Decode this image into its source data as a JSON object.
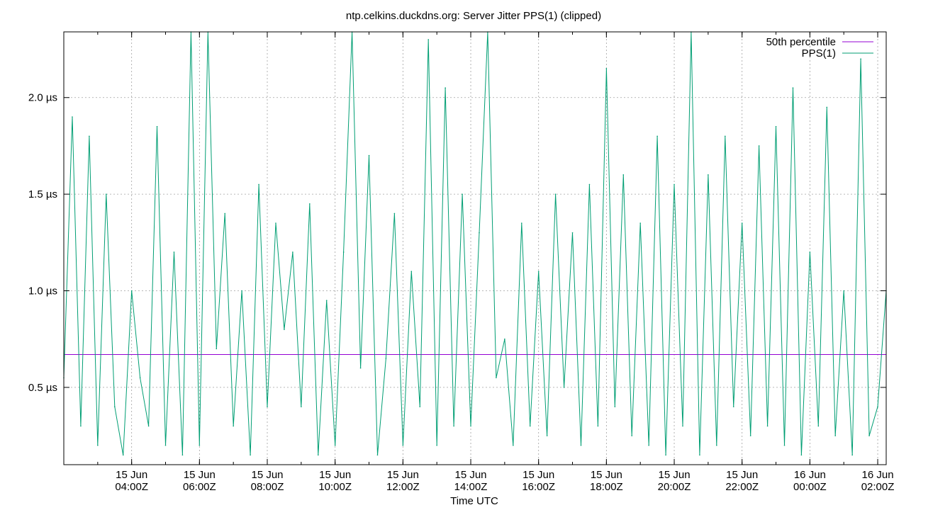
{
  "chart_data": {
    "type": "line",
    "title": "ntp.celkins.duckdns.org: Server Jitter PPS(1) (clipped)",
    "xlabel": "Time UTC",
    "ylabel": "",
    "x_range": [
      "2025-06-15T02:00Z",
      "2025-06-16T02:15Z"
    ],
    "x_ticks": [
      {
        "time": "2025-06-15T04:00Z",
        "label_top": "15 Jun",
        "label_bottom": "04:00Z"
      },
      {
        "time": "2025-06-15T06:00Z",
        "label_top": "15 Jun",
        "label_bottom": "06:00Z"
      },
      {
        "time": "2025-06-15T08:00Z",
        "label_top": "15 Jun",
        "label_bottom": "08:00Z"
      },
      {
        "time": "2025-06-15T10:00Z",
        "label_top": "15 Jun",
        "label_bottom": "10:00Z"
      },
      {
        "time": "2025-06-15T12:00Z",
        "label_top": "15 Jun",
        "label_bottom": "12:00Z"
      },
      {
        "time": "2025-06-15T14:00Z",
        "label_top": "15 Jun",
        "label_bottom": "14:00Z"
      },
      {
        "time": "2025-06-15T16:00Z",
        "label_top": "15 Jun",
        "label_bottom": "16:00Z"
      },
      {
        "time": "2025-06-15T18:00Z",
        "label_top": "15 Jun",
        "label_bottom": "18:00Z"
      },
      {
        "time": "2025-06-15T20:00Z",
        "label_top": "15 Jun",
        "label_bottom": "20:00Z"
      },
      {
        "time": "2025-06-15T22:00Z",
        "label_top": "15 Jun",
        "label_bottom": "22:00Z"
      },
      {
        "time": "2025-06-16T00:00Z",
        "label_top": "16 Jun",
        "label_bottom": "00:00Z"
      },
      {
        "time": "2025-06-16T02:00Z",
        "label_top": "16 Jun",
        "label_bottom": "02:00Z"
      }
    ],
    "ylim": [
      0.1,
      2.34
    ],
    "y_ticks": [
      {
        "value": 0.5,
        "label": "0.5 µs"
      },
      {
        "value": 1.0,
        "label": "1.0 µs"
      },
      {
        "value": 1.5,
        "label": "1.5 µs"
      },
      {
        "value": 2.0,
        "label": "2.0 µs"
      }
    ],
    "grid": true,
    "legend_position": "top-right",
    "series": [
      {
        "name": "50th percentile",
        "color": "#9400d3",
        "kind": "constant",
        "value": 0.67
      },
      {
        "name": "PPS(1)",
        "color": "#009e73",
        "kind": "line",
        "x": [
          "2025-06-15T02:00Z",
          "2025-06-15T02:15Z",
          "2025-06-15T02:30Z",
          "2025-06-15T02:45Z",
          "2025-06-15T03:00Z",
          "2025-06-15T03:15Z",
          "2025-06-15T03:30Z",
          "2025-06-15T03:45Z",
          "2025-06-15T04:00Z",
          "2025-06-15T04:15Z",
          "2025-06-15T04:30Z",
          "2025-06-15T04:45Z",
          "2025-06-15T05:00Z",
          "2025-06-15T05:15Z",
          "2025-06-15T05:30Z",
          "2025-06-15T05:45Z",
          "2025-06-15T06:00Z",
          "2025-06-15T06:15Z",
          "2025-06-15T06:30Z",
          "2025-06-15T06:45Z",
          "2025-06-15T07:00Z",
          "2025-06-15T07:15Z",
          "2025-06-15T07:30Z",
          "2025-06-15T07:45Z",
          "2025-06-15T08:00Z",
          "2025-06-15T08:15Z",
          "2025-06-15T08:30Z",
          "2025-06-15T08:45Z",
          "2025-06-15T09:00Z",
          "2025-06-15T09:15Z",
          "2025-06-15T09:30Z",
          "2025-06-15T09:45Z",
          "2025-06-15T10:00Z",
          "2025-06-15T10:15Z",
          "2025-06-15T10:30Z",
          "2025-06-15T10:45Z",
          "2025-06-15T11:00Z",
          "2025-06-15T11:15Z",
          "2025-06-15T11:30Z",
          "2025-06-15T11:45Z",
          "2025-06-15T12:00Z",
          "2025-06-15T12:15Z",
          "2025-06-15T12:30Z",
          "2025-06-15T12:45Z",
          "2025-06-15T13:00Z",
          "2025-06-15T13:15Z",
          "2025-06-15T13:30Z",
          "2025-06-15T13:45Z",
          "2025-06-15T14:00Z",
          "2025-06-15T14:15Z",
          "2025-06-15T14:30Z",
          "2025-06-15T14:45Z",
          "2025-06-15T15:00Z",
          "2025-06-15T15:15Z",
          "2025-06-15T15:30Z",
          "2025-06-15T15:45Z",
          "2025-06-15T16:00Z",
          "2025-06-15T16:15Z",
          "2025-06-15T16:30Z",
          "2025-06-15T16:45Z",
          "2025-06-15T17:00Z",
          "2025-06-15T17:15Z",
          "2025-06-15T17:30Z",
          "2025-06-15T17:45Z",
          "2025-06-15T18:00Z",
          "2025-06-15T18:15Z",
          "2025-06-15T18:30Z",
          "2025-06-15T18:45Z",
          "2025-06-15T19:00Z",
          "2025-06-15T19:15Z",
          "2025-06-15T19:30Z",
          "2025-06-15T19:45Z",
          "2025-06-15T20:00Z",
          "2025-06-15T20:15Z",
          "2025-06-15T20:30Z",
          "2025-06-15T20:45Z",
          "2025-06-15T21:00Z",
          "2025-06-15T21:15Z",
          "2025-06-15T21:30Z",
          "2025-06-15T21:45Z",
          "2025-06-15T22:00Z",
          "2025-06-15T22:15Z",
          "2025-06-15T22:30Z",
          "2025-06-15T22:45Z",
          "2025-06-15T23:00Z",
          "2025-06-15T23:15Z",
          "2025-06-15T23:30Z",
          "2025-06-15T23:45Z",
          "2025-06-16T00:00Z",
          "2025-06-16T00:15Z",
          "2025-06-16T00:30Z",
          "2025-06-16T00:45Z",
          "2025-06-16T01:00Z",
          "2025-06-16T01:15Z",
          "2025-06-16T01:30Z",
          "2025-06-16T01:45Z",
          "2025-06-16T02:00Z",
          "2025-06-16T02:15Z"
        ],
        "y": [
          0.55,
          1.9,
          0.3,
          1.8,
          0.2,
          1.5,
          0.4,
          0.15,
          1.0,
          0.55,
          0.3,
          1.85,
          0.2,
          1.2,
          0.15,
          2.34,
          0.2,
          2.34,
          0.7,
          1.4,
          0.3,
          1.0,
          0.15,
          1.55,
          0.4,
          1.35,
          0.8,
          1.2,
          0.4,
          1.45,
          0.15,
          0.95,
          0.2,
          1.2,
          2.34,
          0.6,
          1.7,
          0.15,
          0.65,
          1.4,
          0.2,
          1.1,
          0.4,
          2.3,
          0.2,
          2.05,
          0.3,
          1.5,
          0.3,
          1.3,
          2.34,
          0.55,
          0.75,
          0.2,
          1.35,
          0.3,
          1.1,
          0.25,
          1.5,
          0.5,
          1.3,
          0.2,
          1.55,
          0.3,
          2.15,
          0.4,
          1.6,
          0.25,
          1.35,
          0.2,
          1.8,
          0.15,
          1.55,
          0.3,
          2.34,
          0.15,
          1.6,
          0.2,
          1.8,
          0.4,
          1.35,
          0.25,
          1.75,
          0.3,
          1.85,
          0.2,
          2.05,
          0.15,
          1.2,
          0.3,
          1.95,
          0.25,
          1.0,
          0.15,
          2.2,
          0.25,
          0.4,
          1.0
        ]
      }
    ]
  }
}
